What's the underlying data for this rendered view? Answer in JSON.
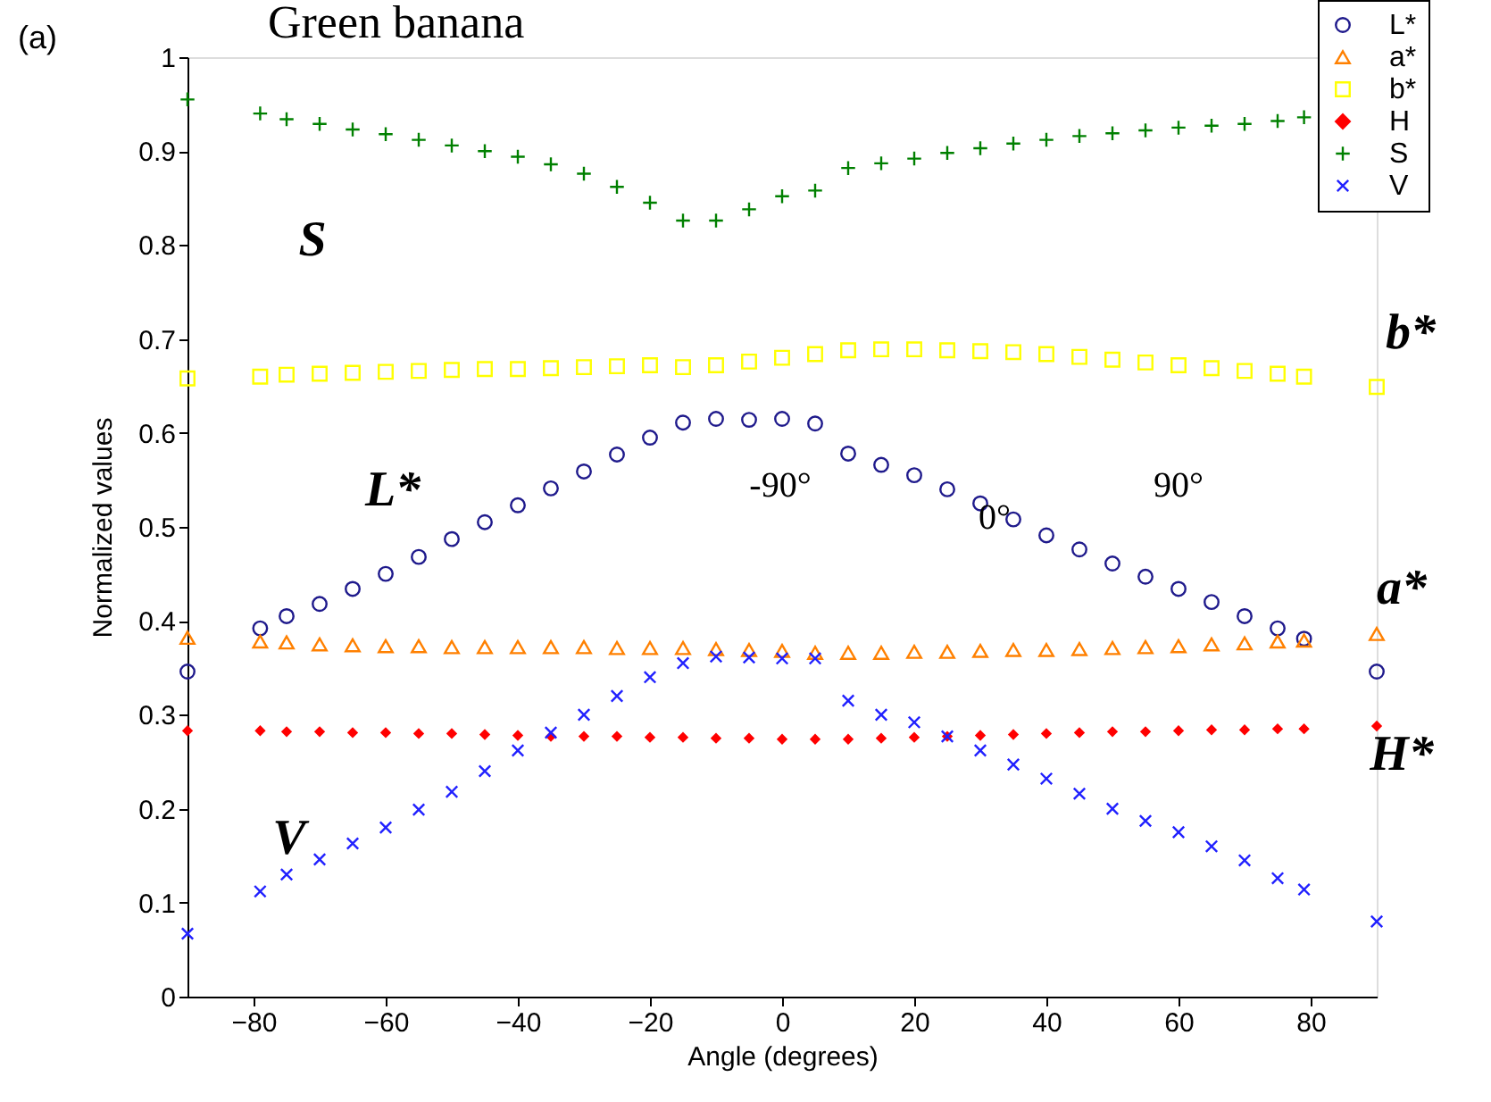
{
  "chart_data": {
    "type": "scatter",
    "title": "Green banana",
    "xlabel": "Angle (degrees)",
    "ylabel": "Normalized values",
    "x": [
      -90,
      -79,
      -75,
      -70,
      -65,
      -60,
      -55,
      -50,
      -45,
      -40,
      -35,
      -30,
      -25,
      -20,
      -15,
      -10,
      -5,
      0,
      5,
      10,
      15,
      20,
      25,
      30,
      35,
      40,
      45,
      50,
      55,
      60,
      65,
      70,
      75,
      79,
      90
    ],
    "series": [
      {
        "name": "L*",
        "color": "#1f1a8c",
        "marker": "circle",
        "values": [
          0.346,
          0.392,
          0.405,
          0.418,
          0.434,
          0.45,
          0.468,
          0.487,
          0.505,
          0.523,
          0.541,
          0.559,
          0.577,
          0.595,
          0.611,
          0.615,
          0.614,
          0.615,
          0.61,
          0.578,
          0.566,
          0.555,
          0.54,
          0.525,
          0.508,
          0.491,
          0.476,
          0.461,
          0.447,
          0.434,
          0.42,
          0.405,
          0.392,
          0.381,
          0.346
        ]
      },
      {
        "name": "a*",
        "color": "#ff8000",
        "marker": "triangle",
        "values": [
          0.382,
          0.378,
          0.377,
          0.375,
          0.374,
          0.373,
          0.373,
          0.372,
          0.372,
          0.372,
          0.372,
          0.372,
          0.371,
          0.371,
          0.371,
          0.37,
          0.369,
          0.368,
          0.366,
          0.366,
          0.366,
          0.367,
          0.367,
          0.368,
          0.369,
          0.369,
          0.37,
          0.371,
          0.372,
          0.373,
          0.375,
          0.376,
          0.378,
          0.379,
          0.386
        ]
      },
      {
        "name": "b*",
        "color": "#ffff00",
        "marker": "square",
        "values": [
          0.658,
          0.66,
          0.662,
          0.663,
          0.664,
          0.665,
          0.666,
          0.667,
          0.668,
          0.668,
          0.669,
          0.67,
          0.671,
          0.672,
          0.67,
          0.672,
          0.676,
          0.68,
          0.684,
          0.688,
          0.689,
          0.689,
          0.688,
          0.687,
          0.686,
          0.684,
          0.681,
          0.678,
          0.675,
          0.672,
          0.669,
          0.666,
          0.663,
          0.66,
          0.649
        ]
      },
      {
        "name": "H",
        "color": "#ff0000",
        "marker": "diamond",
        "values": [
          0.283,
          0.283,
          0.282,
          0.282,
          0.281,
          0.281,
          0.28,
          0.28,
          0.279,
          0.278,
          0.277,
          0.277,
          0.277,
          0.276,
          0.276,
          0.275,
          0.275,
          0.274,
          0.274,
          0.274,
          0.275,
          0.276,
          0.277,
          0.278,
          0.279,
          0.28,
          0.281,
          0.282,
          0.282,
          0.283,
          0.284,
          0.284,
          0.285,
          0.285,
          0.288
        ]
      },
      {
        "name": "S",
        "color": "#008000",
        "marker": "cross",
        "values": [
          0.955,
          0.94,
          0.934,
          0.929,
          0.923,
          0.918,
          0.912,
          0.906,
          0.9,
          0.894,
          0.886,
          0.876,
          0.862,
          0.845,
          0.826,
          0.826,
          0.838,
          0.852,
          0.858,
          0.882,
          0.887,
          0.892,
          0.898,
          0.903,
          0.908,
          0.912,
          0.916,
          0.919,
          0.922,
          0.925,
          0.927,
          0.929,
          0.932,
          0.936,
          null
        ]
      },
      {
        "name": "V",
        "color": "#2020ff",
        "marker": "x",
        "values": [
          0.067,
          0.112,
          0.13,
          0.146,
          0.163,
          0.18,
          0.199,
          0.218,
          0.24,
          0.262,
          0.281,
          0.3,
          0.32,
          0.34,
          0.355,
          0.362,
          0.361,
          0.36,
          0.36,
          0.315,
          0.3,
          0.292,
          0.277,
          0.262,
          0.247,
          0.232,
          0.216,
          0.2,
          0.187,
          0.175,
          0.16,
          0.145,
          0.126,
          0.114,
          0.08
        ]
      }
    ],
    "xlim": [
      -90,
      90
    ],
    "xticks": [
      -80,
      -60,
      -40,
      -20,
      0,
      20,
      40,
      60,
      80
    ],
    "ylim": [
      0,
      1
    ],
    "yticks": [
      0,
      0.1,
      0.2,
      0.3,
      0.4,
      0.5,
      0.6,
      0.7,
      0.8,
      0.9,
      1
    ],
    "grid": false,
    "legend": "top right",
    "annotations": [
      "(a)",
      "S",
      "L*",
      "V",
      "-90°",
      "0°",
      "90°",
      "b*",
      "a*",
      "H*"
    ]
  }
}
